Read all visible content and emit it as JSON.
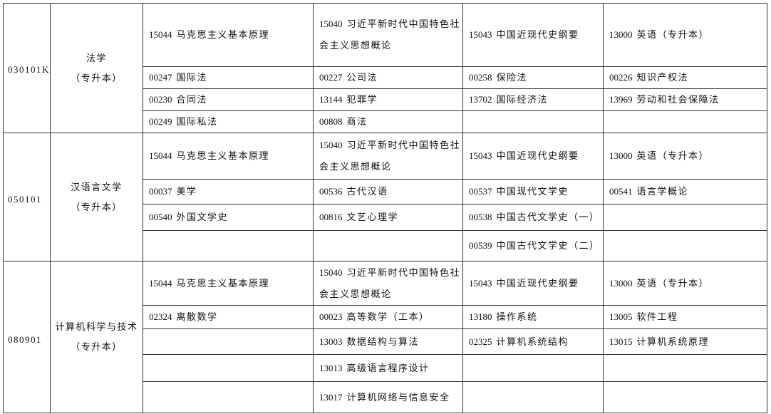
{
  "programs": [
    {
      "code": "030101K",
      "name": "法学",
      "level": "（专升本）",
      "rows": [
        [
          [
            "15044",
            "马克思主义基本原理"
          ],
          [
            "15040",
            "习近平新时代中国特色社会主义思想概论"
          ],
          [
            "15043",
            "中国近现代史纲要"
          ],
          [
            "13000",
            "英语（专升本）"
          ]
        ],
        [
          [
            "00247",
            "国际法"
          ],
          [
            "00227",
            "公司法"
          ],
          [
            "00258",
            "保险法"
          ],
          [
            "00226",
            "知识产权法"
          ]
        ],
        [
          [
            "00230",
            "合同法"
          ],
          [
            "13144",
            "犯罪学"
          ],
          [
            "13702",
            "国际经济法"
          ],
          [
            "13969",
            "劳动和社会保障法"
          ]
        ],
        [
          [
            "00249",
            "国际私法"
          ],
          [
            "00808",
            "商法"
          ],
          null,
          null
        ]
      ]
    },
    {
      "code": "050101",
      "name": "汉语言文学",
      "level": "（专升本）",
      "rows": [
        [
          [
            "15044",
            "马克思主义基本原理"
          ],
          [
            "15040",
            "习近平新时代中国特色社会主义思想概论"
          ],
          [
            "15043",
            "中国近现代史纲要"
          ],
          [
            "13000",
            "英语（专升本）"
          ]
        ],
        [
          [
            "00037",
            "美学"
          ],
          [
            "00536",
            "古代汉语"
          ],
          [
            "00537",
            "中国现代文学史"
          ],
          [
            "00541",
            "语言学概论"
          ]
        ],
        [
          [
            "00540",
            "外国文学史"
          ],
          [
            "00816",
            "文艺心理学"
          ],
          [
            "00538",
            "中国古代文学史（一）"
          ],
          null
        ],
        [
          null,
          null,
          [
            "00539",
            "中国古代文学史（二）"
          ],
          null
        ]
      ]
    },
    {
      "code": "080901",
      "name": "计算机科学与技术",
      "level": "（专升本）",
      "rows": [
        [
          [
            "15044",
            "马克思主义基本原理"
          ],
          [
            "15040",
            "习近平新时代中国特色社会主义思想概论"
          ],
          [
            "15043",
            "中国近现代史纲要"
          ],
          [
            "13000",
            "英语（专升本）"
          ]
        ],
        [
          [
            "02324",
            "离散数学"
          ],
          [
            "00023",
            "高等数学（工本）"
          ],
          [
            "13180",
            "操作系统"
          ],
          [
            "13005",
            "软件工程"
          ]
        ],
        [
          null,
          [
            "13003",
            "数据结构与算法"
          ],
          [
            "02325",
            "计算机系统结构"
          ],
          [
            "13015",
            "计算机系统原理"
          ]
        ],
        [
          null,
          [
            "13013",
            "高级语言程序设计"
          ],
          null,
          null
        ],
        [
          null,
          [
            "13017",
            "计算机网络与信息安全"
          ],
          null,
          null
        ]
      ]
    }
  ]
}
